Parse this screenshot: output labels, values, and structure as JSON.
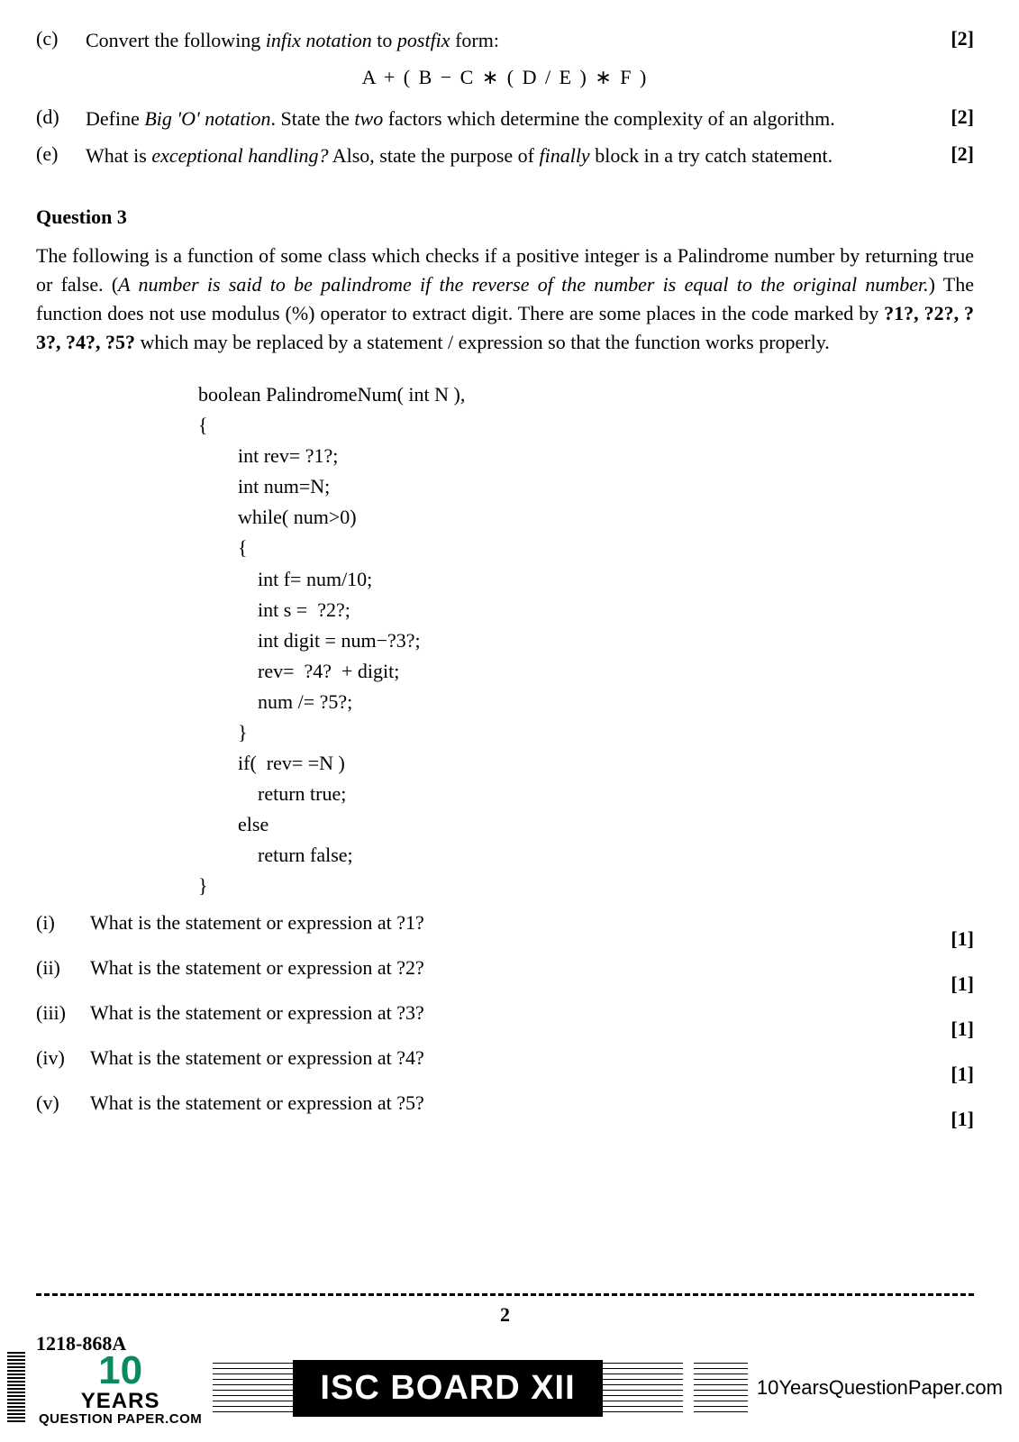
{
  "page_bg": "#ffffff",
  "text_color": "#000000",
  "accent_green": "#0a8a5f",
  "parts": [
    {
      "label": "(c)",
      "pre": "Convert the following ",
      "it1": "infix notation",
      "mid": " to ",
      "it2": "postfix",
      "post": " form:",
      "marks": "[2]",
      "expression": "A + ( B − C ∗ ( D / E ) ∗ F )"
    },
    {
      "label": "(d)",
      "pre": "Define ",
      "it1": "Big 'O' notation",
      "mid": ". State the ",
      "it2": "two",
      "post": " factors which determine the complexity of an algorithm.",
      "marks": "[2]"
    },
    {
      "label": "(e)",
      "pre": "What is ",
      "it1": "exceptional handling?",
      "mid": " Also, state the purpose of ",
      "it2": "finally",
      "post": " block in a try catch statement.",
      "marks": "[2]"
    }
  ],
  "q3": {
    "heading": "Question 3",
    "para_plain1": "The following is a function of some class which checks if a positive integer is a Palindrome number by returning true or false. (",
    "para_italic": "A number is said to be palindrome if the reverse of the number is equal to the original number.",
    "para_plain2": ")  The function does not use modulus (%) operator to extract digit. There are some places in the code marked by ",
    "para_bold": "?1?, ?2?, ?3?, ?4?, ?5?",
    "para_plain3": " which may be replaced by a statement / expression so that the function works properly.",
    "code": "boolean PalindromeNum( int N ),\n{\n        int rev= ?1?;\n        int num=N;\n        while( num>0)\n        {\n            int f= num/10;\n            int s =  ?2?;\n            int digit = num−?3?;\n            rev=  ?4?  + digit;\n            num /= ?5?;\n        }\n        if(  rev= =N )\n            return true;\n        else\n            return false;\n}",
    "subs": [
      {
        "label": "(i)",
        "text": "What is the statement or expression at ?1?",
        "marks": "[1]"
      },
      {
        "label": "(ii)",
        "text": "What is the statement or expression at ?2?",
        "marks": "[1]"
      },
      {
        "label": "(iii)",
        "text": "What is the statement or expression at ?3?",
        "marks": "[1]"
      },
      {
        "label": "(iv)",
        "text": "What is the statement or expression at ?4?",
        "marks": "[1]"
      },
      {
        "label": "(v)",
        "text": "What is the statement or expression at ?5?",
        "marks": "[1]"
      }
    ]
  },
  "page_number": "2",
  "paper_code": "1218-868A",
  "footer": {
    "logo_num": "10",
    "logo_years": "YEARS",
    "logo_tag": "QUESTION PAPER.COM",
    "badge": "ISC BOARD XII",
    "url": "10YearsQuestionPaper.com"
  }
}
